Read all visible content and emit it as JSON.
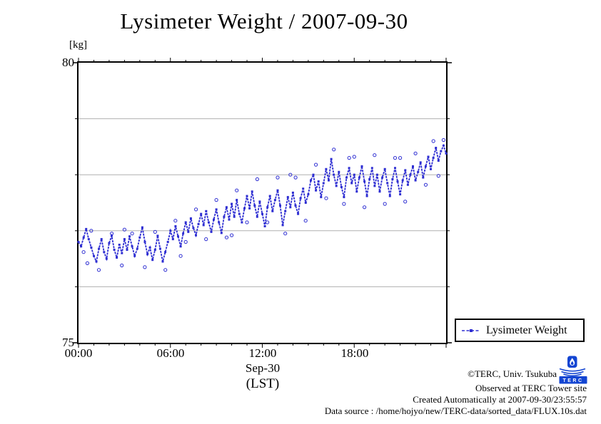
{
  "title": "Lysimeter Weight / 2007-09-30",
  "legend": {
    "label": "Lysimeter Weight"
  },
  "footer": {
    "credit": "©TERC, Univ. Tsukuba",
    "observed": "Observed at TERC Tower site",
    "created": "Created Automatically at 2007-09-30/23:55:57",
    "datasource": "Data source : /home/hojyo/new/TERC-data/sorted_data/FLUX.10s.dat"
  },
  "logo": {
    "label": "TERC"
  },
  "colors": {
    "series_blue": "#2e2ed2",
    "grid_gray": "#b0b0b0",
    "axis_black": "#000000",
    "logo_blue": "#1345d2"
  },
  "chart_data": {
    "type": "line",
    "title": "Lysimeter Weight / 2007-09-30",
    "unit_label": "[kg]",
    "ylabel": "[kg]",
    "xlabel": "Sep-30 (LST)",
    "ylim": [
      75,
      80
    ],
    "y_axis_labels": [
      "80",
      "75"
    ],
    "grid_kg": [
      76,
      77,
      78,
      79
    ],
    "grid": true,
    "x_hours": [
      0,
      24
    ],
    "x_tick_hours": [
      0,
      6,
      12,
      18
    ],
    "x_tick_labels": [
      "00:00",
      "06:00",
      "12:00",
      "18:00"
    ],
    "x_minor_tick_every_hours": 1,
    "x_date_label": "Sep-30",
    "x_tz_label": "(LST)",
    "legend_position": "outside-bottom-right",
    "series": [
      {
        "name": "Lysimeter Weight",
        "unit": "kg",
        "start_hour": 0,
        "interval_minutes": 10,
        "values": [
          76.8,
          76.72,
          76.88,
          77.03,
          76.85,
          76.7,
          76.55,
          76.45,
          76.68,
          76.85,
          76.62,
          76.5,
          76.78,
          76.91,
          76.66,
          76.52,
          76.75,
          76.6,
          76.85,
          76.66,
          76.9,
          76.72,
          76.55,
          76.68,
          76.88,
          77.06,
          76.8,
          76.58,
          76.7,
          76.48,
          76.66,
          76.91,
          76.68,
          76.45,
          76.62,
          76.8,
          77.0,
          76.85,
          77.08,
          76.9,
          76.72,
          76.95,
          77.15,
          76.98,
          77.22,
          77.05,
          76.92,
          77.12,
          77.3,
          77.1,
          77.35,
          77.15,
          76.98,
          77.2,
          77.38,
          77.15,
          76.96,
          77.25,
          77.42,
          77.2,
          77.48,
          77.25,
          77.55,
          77.3,
          77.15,
          77.4,
          77.62,
          77.4,
          77.7,
          77.45,
          77.25,
          77.52,
          77.3,
          77.08,
          77.42,
          77.62,
          77.35,
          77.55,
          77.72,
          77.45,
          77.1,
          77.35,
          77.6,
          77.42,
          77.68,
          77.45,
          77.3,
          77.58,
          77.75,
          77.5,
          77.65,
          77.9,
          78.0,
          77.72,
          77.88,
          77.6,
          77.85,
          78.1,
          77.9,
          78.28,
          78.0,
          77.8,
          78.05,
          77.78,
          77.6,
          77.95,
          78.12,
          77.85,
          78.0,
          77.7,
          77.95,
          78.15,
          77.88,
          77.62,
          77.92,
          78.12,
          77.8,
          78.0,
          77.7,
          77.95,
          78.1,
          77.85,
          77.62,
          77.92,
          78.12,
          77.88,
          77.65,
          77.9,
          78.08,
          77.82,
          78.0,
          78.15,
          77.9,
          78.05,
          78.22,
          77.95,
          78.15,
          78.32,
          78.1,
          78.3,
          78.48,
          78.25,
          78.42,
          78.52,
          78.38
        ]
      }
    ],
    "scatter_points": [
      [
        0.33,
        76.62
      ],
      [
        0.58,
        76.42
      ],
      [
        0.83,
        77.0
      ],
      [
        1.33,
        76.3
      ],
      [
        2.17,
        76.95
      ],
      [
        2.83,
        76.38
      ],
      [
        3.0,
        77.02
      ],
      [
        3.5,
        76.95
      ],
      [
        4.33,
        76.35
      ],
      [
        5.0,
        76.98
      ],
      [
        5.67,
        76.3
      ],
      [
        6.33,
        77.18
      ],
      [
        6.67,
        76.55
      ],
      [
        7.0,
        76.8
      ],
      [
        7.67,
        77.38
      ],
      [
        8.33,
        76.85
      ],
      [
        9.0,
        77.55
      ],
      [
        9.67,
        76.88
      ],
      [
        10.0,
        76.92
      ],
      [
        10.33,
        77.72
      ],
      [
        11.0,
        77.15
      ],
      [
        11.67,
        77.92
      ],
      [
        12.33,
        77.15
      ],
      [
        13.0,
        77.95
      ],
      [
        13.5,
        76.95
      ],
      [
        13.83,
        78.0
      ],
      [
        14.17,
        77.95
      ],
      [
        14.83,
        77.18
      ],
      [
        15.5,
        78.18
      ],
      [
        16.17,
        77.58
      ],
      [
        16.67,
        78.45
      ],
      [
        17.33,
        77.48
      ],
      [
        17.67,
        78.3
      ],
      [
        18.0,
        78.32
      ],
      [
        18.67,
        77.42
      ],
      [
        19.33,
        78.35
      ],
      [
        20.0,
        77.48
      ],
      [
        20.67,
        78.3
      ],
      [
        21.0,
        78.3
      ],
      [
        21.33,
        77.52
      ],
      [
        22.0,
        78.38
      ],
      [
        22.67,
        77.82
      ],
      [
        23.17,
        78.6
      ],
      [
        23.5,
        77.98
      ],
      [
        23.83,
        78.62
      ]
    ]
  }
}
